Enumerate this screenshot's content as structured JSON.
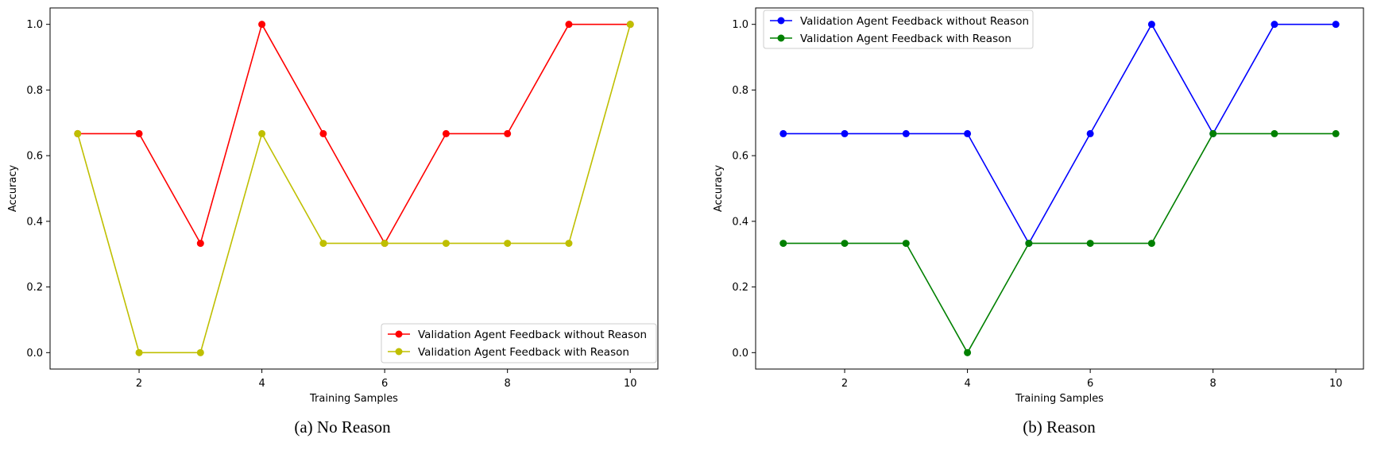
{
  "chart_data": [
    {
      "type": "line",
      "caption": "(a) No Reason",
      "xlabel": "Training Samples",
      "ylabel": "Accuracy",
      "x": [
        1,
        2,
        3,
        4,
        5,
        6,
        7,
        8,
        9,
        10
      ],
      "xlim": [
        0.55,
        10.45
      ],
      "ylim": [
        -0.05,
        1.05
      ],
      "xticks": [
        2,
        4,
        6,
        8,
        10
      ],
      "xtick_labels": [
        "2",
        "4",
        "6",
        "8",
        "10"
      ],
      "yticks": [
        0.0,
        0.2,
        0.4,
        0.6,
        0.8,
        1.0
      ],
      "ytick_labels": [
        "0.0",
        "0.2",
        "0.4",
        "0.6",
        "0.8",
        "1.0"
      ],
      "grid": false,
      "legend_position": "bottom-right",
      "series": [
        {
          "name": "Validation Agent Feedback without Reason",
          "color": "#ff0000",
          "values": [
            0.667,
            0.667,
            0.333,
            1.0,
            0.667,
            0.333,
            0.667,
            0.667,
            1.0,
            1.0
          ]
        },
        {
          "name": "Validation Agent Feedback with Reason",
          "color": "#bfbf00",
          "values": [
            0.667,
            0.0,
            0.0,
            0.667,
            0.333,
            0.333,
            0.333,
            0.333,
            0.333,
            1.0
          ]
        }
      ]
    },
    {
      "type": "line",
      "caption": "(b) Reason",
      "xlabel": "Training Samples",
      "ylabel": "Accuracy",
      "x": [
        1,
        2,
        3,
        4,
        5,
        6,
        7,
        8,
        9,
        10
      ],
      "xlim": [
        0.55,
        10.45
      ],
      "ylim": [
        -0.05,
        1.05
      ],
      "xticks": [
        2,
        4,
        6,
        8,
        10
      ],
      "xtick_labels": [
        "2",
        "4",
        "6",
        "8",
        "10"
      ],
      "yticks": [
        0.0,
        0.2,
        0.4,
        0.6,
        0.8,
        1.0
      ],
      "ytick_labels": [
        "0.0",
        "0.2",
        "0.4",
        "0.6",
        "0.8",
        "1.0"
      ],
      "grid": false,
      "legend_position": "top-left",
      "series": [
        {
          "name": "Validation Agent Feedback without Reason",
          "color": "#0000ff",
          "values": [
            0.667,
            0.667,
            0.667,
            0.667,
            0.333,
            0.667,
            1.0,
            0.667,
            1.0,
            1.0
          ]
        },
        {
          "name": "Validation Agent Feedback with Reason",
          "color": "#008000",
          "values": [
            0.333,
            0.333,
            0.333,
            0.0,
            0.333,
            0.333,
            0.333,
            0.667,
            0.667,
            0.667
          ]
        }
      ]
    }
  ]
}
